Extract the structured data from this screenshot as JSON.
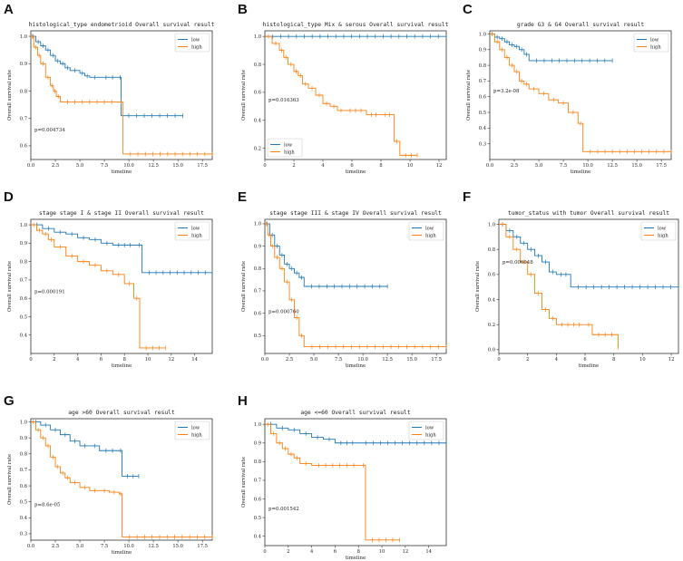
{
  "colors": {
    "low": "#1f77b4",
    "high": "#ff7f0e",
    "axis": "#333333"
  },
  "chart_data": [
    {
      "type": "line",
      "label": "A",
      "title": "histological_type endometrioid  Overall survival result",
      "xlabel": "timeline",
      "ylabel": "Overall survival rate",
      "pvalue": "p=0.004734",
      "xlim": [
        0,
        18.5
      ],
      "xticks": [
        0,
        2.5,
        5,
        7.5,
        10,
        12.5,
        15,
        17.5
      ],
      "xtick_labels": [
        "0.0",
        "2.5",
        "5.0",
        "7.5",
        "10.0",
        "12.5",
        "15.0",
        "17.5"
      ],
      "ylim": [
        0.55,
        1.02
      ],
      "yticks": [
        0.6,
        0.7,
        0.8,
        0.9,
        1.0
      ],
      "ytick_labels": [
        "0.6",
        "0.7",
        "0.8",
        "0.9",
        "1.0"
      ],
      "legend": [
        "low",
        "high"
      ],
      "series": [
        {
          "name": "low",
          "x": [
            0,
            0.5,
            1,
            1.5,
            2,
            2.5,
            3,
            3.5,
            4,
            5,
            5.5,
            6,
            7,
            9,
            9.2,
            15.5
          ],
          "y": [
            1,
            0.98,
            0.965,
            0.95,
            0.93,
            0.91,
            0.9,
            0.885,
            0.875,
            0.865,
            0.855,
            0.85,
            0.85,
            0.85,
            0.71,
            0.71
          ]
        },
        {
          "name": "high",
          "x": [
            0,
            0.3,
            0.7,
            1,
            1.5,
            2,
            2.3,
            2.6,
            3,
            9,
            9.4,
            18.5
          ],
          "y": [
            1,
            0.96,
            0.93,
            0.9,
            0.85,
            0.82,
            0.8,
            0.78,
            0.76,
            0.76,
            0.57,
            0.57
          ]
        }
      ]
    },
    {
      "type": "line",
      "label": "B",
      "title": "histological_type Mix & serous Overall survival result",
      "xlabel": "timeline",
      "ylabel": "Overall survival rate",
      "pvalue": "p=0.016363",
      "xlim": [
        0,
        12.5
      ],
      "xticks": [
        0,
        2,
        4,
        6,
        8,
        10,
        12
      ],
      "xtick_labels": [
        "0",
        "2",
        "4",
        "6",
        "8",
        "10",
        "12"
      ],
      "ylim": [
        0.12,
        1.04
      ],
      "yticks": [
        0.2,
        0.4,
        0.6,
        0.8,
        1.0
      ],
      "ytick_labels": [
        "0.2",
        "0.4",
        "0.6",
        "0.8",
        "1.0"
      ],
      "legend": [
        "low",
        "high"
      ],
      "series": [
        {
          "name": "low",
          "x": [
            0,
            12.5
          ],
          "y": [
            1,
            1
          ]
        },
        {
          "name": "high",
          "x": [
            0,
            0.5,
            1,
            1.3,
            1.6,
            2,
            2.3,
            2.6,
            3,
            3.5,
            4,
            4.5,
            5,
            5.5,
            7,
            8,
            8.9,
            9.3,
            10.5
          ],
          "y": [
            1,
            0.95,
            0.9,
            0.85,
            0.8,
            0.75,
            0.72,
            0.66,
            0.63,
            0.58,
            0.52,
            0.5,
            0.47,
            0.47,
            0.44,
            0.44,
            0.25,
            0.15,
            0.15
          ]
        }
      ]
    },
    {
      "type": "line",
      "label": "C",
      "title": "grade  G3 & G4 Overall survival result",
      "xlabel": "timeline",
      "ylabel": "Overall survival rate",
      "pvalue": "p=3.2e-08",
      "xlim": [
        0,
        18.5
      ],
      "xticks": [
        0,
        2.5,
        5,
        7.5,
        10,
        12.5,
        15,
        17.5
      ],
      "xtick_labels": [
        "0.0",
        "2.5",
        "5.0",
        "7.5",
        "10.0",
        "12.5",
        "15.0",
        "17.5"
      ],
      "ylim": [
        0.2,
        1.02
      ],
      "yticks": [
        0.3,
        0.4,
        0.5,
        0.6,
        0.7,
        0.8,
        0.9,
        1.0
      ],
      "ytick_labels": [
        "0.3",
        "0.4",
        "0.5",
        "0.6",
        "0.7",
        "0.8",
        "0.9",
        "1.0"
      ],
      "legend": [
        "low",
        "high"
      ],
      "series": [
        {
          "name": "low",
          "x": [
            0,
            0.5,
            1,
            1.5,
            2,
            2.5,
            3,
            3.5,
            4,
            12.5
          ],
          "y": [
            1,
            0.98,
            0.97,
            0.95,
            0.93,
            0.92,
            0.9,
            0.87,
            0.83,
            0.83
          ]
        },
        {
          "name": "high",
          "x": [
            0,
            0.5,
            1,
            1.5,
            2,
            2.5,
            3,
            3.5,
            4,
            5,
            6,
            7,
            8,
            9,
            9.5,
            18.5
          ],
          "y": [
            1,
            0.95,
            0.9,
            0.85,
            0.8,
            0.76,
            0.7,
            0.68,
            0.65,
            0.62,
            0.58,
            0.56,
            0.5,
            0.43,
            0.25,
            0.25
          ]
        }
      ]
    },
    {
      "type": "line",
      "label": "D",
      "title": "stage stage I & stage II Overall survival result",
      "xlabel": "timeline",
      "ylabel": "Overall survival rate",
      "pvalue": "p=0.000191",
      "xlim": [
        0,
        15.5
      ],
      "xticks": [
        0,
        2,
        4,
        6,
        8,
        10,
        12,
        14
      ],
      "xtick_labels": [
        "0",
        "2",
        "4",
        "6",
        "8",
        "10",
        "12",
        "14"
      ],
      "ylim": [
        0.3,
        1.03
      ],
      "yticks": [
        0.4,
        0.5,
        0.6,
        0.7,
        0.8,
        0.9,
        1.0
      ],
      "ytick_labels": [
        "0.4",
        "0.5",
        "0.6",
        "0.7",
        "0.8",
        "0.9",
        "1.0"
      ],
      "legend": [
        "low",
        "high"
      ],
      "series": [
        {
          "name": "low",
          "x": [
            0,
            1,
            2,
            3,
            4,
            5,
            6,
            7,
            9,
            9.5,
            15.5
          ],
          "y": [
            1,
            0.98,
            0.96,
            0.95,
            0.93,
            0.92,
            0.9,
            0.89,
            0.89,
            0.74,
            0.74
          ]
        },
        {
          "name": "high",
          "x": [
            0,
            0.5,
            1,
            1.5,
            2,
            3,
            4,
            5,
            6,
            7,
            8,
            8.8,
            9.3,
            11.5
          ],
          "y": [
            1,
            0.97,
            0.95,
            0.92,
            0.88,
            0.83,
            0.8,
            0.78,
            0.75,
            0.73,
            0.68,
            0.6,
            0.33,
            0.33
          ]
        }
      ]
    },
    {
      "type": "line",
      "label": "E",
      "title": "stage stage III & stage IV Overall survival result",
      "xlabel": "timeline",
      "ylabel": "Overall survival rate",
      "pvalue": "p=0.000760",
      "xlim": [
        0,
        18.5
      ],
      "xticks": [
        0,
        2.5,
        5,
        7.5,
        10,
        12.5,
        15,
        17.5
      ],
      "xtick_labels": [
        "0.0",
        "2.5",
        "5.0",
        "7.5",
        "10.0",
        "12.5",
        "15.0",
        "17.5"
      ],
      "ylim": [
        0.42,
        1.02
      ],
      "yticks": [
        0.5,
        0.6,
        0.7,
        0.8,
        0.9,
        1.0
      ],
      "ytick_labels": [
        "0.5",
        "0.6",
        "0.7",
        "0.8",
        "0.9",
        "1.0"
      ],
      "legend": [
        "low",
        "high"
      ],
      "series": [
        {
          "name": "low",
          "x": [
            0,
            0.5,
            1,
            1.5,
            2,
            2.5,
            3,
            3.5,
            4,
            12.5
          ],
          "y": [
            1,
            0.95,
            0.9,
            0.86,
            0.82,
            0.8,
            0.78,
            0.76,
            0.72,
            0.72
          ]
        },
        {
          "name": "high",
          "x": [
            0,
            0.3,
            0.6,
            1,
            1.5,
            2,
            2.5,
            3,
            3.5,
            4,
            18.5
          ],
          "y": [
            1,
            0.95,
            0.9,
            0.85,
            0.8,
            0.74,
            0.66,
            0.58,
            0.5,
            0.45,
            0.45
          ]
        }
      ]
    },
    {
      "type": "line",
      "label": "F",
      "title": "tumor_status with tumor  Overall survival result",
      "xlabel": "timeline",
      "ylabel": "Overall survival rate",
      "pvalue": "p=0.006048",
      "xlim": [
        0,
        12.5
      ],
      "xticks": [
        0,
        2,
        4,
        6,
        8,
        10,
        12
      ],
      "xtick_labels": [
        "0",
        "2",
        "4",
        "6",
        "8",
        "10",
        "12"
      ],
      "ylim": [
        -0.03,
        1.04
      ],
      "yticks": [
        0.0,
        0.2,
        0.4,
        0.6,
        0.8,
        1.0
      ],
      "ytick_labels": [
        "0.0",
        "0.2",
        "0.4",
        "0.6",
        "0.8",
        "1.0"
      ],
      "legend": [
        "low",
        "high"
      ],
      "series": [
        {
          "name": "low",
          "x": [
            0,
            0.5,
            1,
            1.5,
            2,
            2.5,
            3,
            3.5,
            4,
            5,
            12.5
          ],
          "y": [
            1,
            0.95,
            0.9,
            0.85,
            0.8,
            0.75,
            0.7,
            0.62,
            0.6,
            0.5,
            0.5
          ]
        },
        {
          "name": "high",
          "x": [
            0,
            0.5,
            1,
            1.5,
            2,
            2.5,
            3,
            3.5,
            4,
            6,
            6.5,
            8.3
          ],
          "y": [
            1,
            0.9,
            0.8,
            0.7,
            0.6,
            0.45,
            0.32,
            0.25,
            0.2,
            0.2,
            0.12,
            0.02
          ]
        }
      ]
    },
    {
      "type": "line",
      "label": "G",
      "title": "age >60 Overall survival result",
      "xlabel": "timeline",
      "ylabel": "Overall survival rate",
      "pvalue": "p=8.6e-05",
      "xlim": [
        0,
        18.5
      ],
      "xticks": [
        0,
        2.5,
        5,
        7.5,
        10,
        12.5,
        15,
        17.5
      ],
      "xtick_labels": [
        "0.0",
        "2.5",
        "5.0",
        "7.5",
        "10.0",
        "12.5",
        "15.0",
        "17.5"
      ],
      "ylim": [
        0.26,
        1.02
      ],
      "yticks": [
        0.3,
        0.4,
        0.5,
        0.6,
        0.7,
        0.8,
        0.9,
        1.0
      ],
      "ytick_labels": [
        "0.3",
        "0.4",
        "0.5",
        "0.6",
        "0.7",
        "0.8",
        "0.9",
        "1.0"
      ],
      "legend": [
        "low",
        "high"
      ],
      "series": [
        {
          "name": "low",
          "x": [
            0,
            1,
            2,
            3,
            4,
            5,
            6,
            7,
            9,
            9.3,
            11
          ],
          "y": [
            1,
            0.98,
            0.95,
            0.92,
            0.88,
            0.85,
            0.85,
            0.82,
            0.82,
            0.66,
            0.66
          ]
        },
        {
          "name": "high",
          "x": [
            0,
            0.5,
            1,
            1.5,
            2,
            2.5,
            3,
            3.5,
            4,
            5,
            6,
            7,
            8,
            9,
            9.3,
            18.5
          ],
          "y": [
            1,
            0.95,
            0.9,
            0.85,
            0.78,
            0.72,
            0.68,
            0.65,
            0.62,
            0.59,
            0.57,
            0.57,
            0.56,
            0.55,
            0.28,
            0.28
          ]
        }
      ]
    },
    {
      "type": "line",
      "label": "H",
      "title": "age <=60 Overall survival result",
      "xlabel": "timeline",
      "ylabel": "Overall survival rate",
      "pvalue": "p=0.001542",
      "xlim": [
        0,
        15.5
      ],
      "xticks": [
        0,
        2,
        4,
        6,
        8,
        10,
        12,
        14
      ],
      "xtick_labels": [
        "0",
        "2",
        "4",
        "6",
        "8",
        "10",
        "12",
        "14"
      ],
      "ylim": [
        0.35,
        1.03
      ],
      "yticks": [
        0.4,
        0.5,
        0.6,
        0.7,
        0.8,
        0.9,
        1.0
      ],
      "ytick_labels": [
        "0.4",
        "0.5",
        "0.6",
        "0.7",
        "0.8",
        "0.9",
        "1.0"
      ],
      "legend": [
        "low",
        "high"
      ],
      "series": [
        {
          "name": "low",
          "x": [
            0,
            1,
            2,
            3,
            4,
            5,
            6,
            8,
            15.5
          ],
          "y": [
            1,
            0.98,
            0.97,
            0.95,
            0.93,
            0.92,
            0.9,
            0.9,
            0.9
          ]
        },
        {
          "name": "high",
          "x": [
            0,
            0.5,
            1,
            1.5,
            2,
            2.5,
            3,
            4,
            8.2,
            8.6,
            11.5
          ],
          "y": [
            1,
            0.95,
            0.9,
            0.87,
            0.84,
            0.82,
            0.79,
            0.78,
            0.78,
            0.38,
            0.38
          ]
        }
      ]
    }
  ]
}
